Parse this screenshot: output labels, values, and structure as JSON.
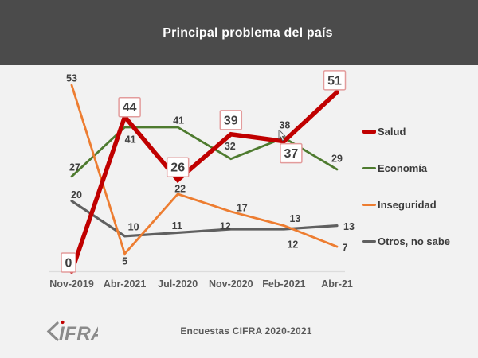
{
  "header": {
    "title": "Principal problema del país"
  },
  "chart_data": {
    "type": "line",
    "title": "Principal problema del país",
    "categories": [
      "Nov-2019",
      "Abr-2021",
      "Jul-2020",
      "Nov-2020",
      "Feb-2021",
      "Abr-21"
    ],
    "series": [
      {
        "name": "Salud",
        "color": "#C00000",
        "values": [
          0,
          44,
          26,
          39,
          37,
          51
        ],
        "emphasized": true,
        "boxed_labels": true
      },
      {
        "name": "Economía",
        "color": "#4E7B2F",
        "values": [
          27,
          41,
          41,
          32,
          38,
          29
        ]
      },
      {
        "name": "Inseguridad",
        "color": "#ED7D31",
        "values": [
          53,
          5,
          22,
          17,
          13,
          7
        ]
      },
      {
        "name": "Otros, no sabe",
        "color": "#606060",
        "values": [
          20,
          10,
          11,
          12,
          12,
          13
        ]
      }
    ],
    "ylim": [
      0,
      55
    ],
    "grid": false,
    "data_labels": true,
    "legend_position": "right"
  },
  "footer": {
    "logo_text": "CIFRA",
    "logo_letters": "IFRA",
    "source": "Encuestas CIFRA 2020-2021"
  },
  "colors": {
    "header_bg": "#4B4B4B",
    "background": "#F2F2F2",
    "title_text": "#FFFFFF",
    "data_label": "#404040",
    "boxed_label_text": "#3F3F3F",
    "boxed_label_border": "#E39C9C",
    "boxed_label_bg": "#FFFFFF",
    "axis_line": "#DCDCDC",
    "tick_label": "#595959",
    "source_text": "#595959",
    "logo_gray": "#8A8A8A",
    "logo_dot": "#C00000"
  }
}
